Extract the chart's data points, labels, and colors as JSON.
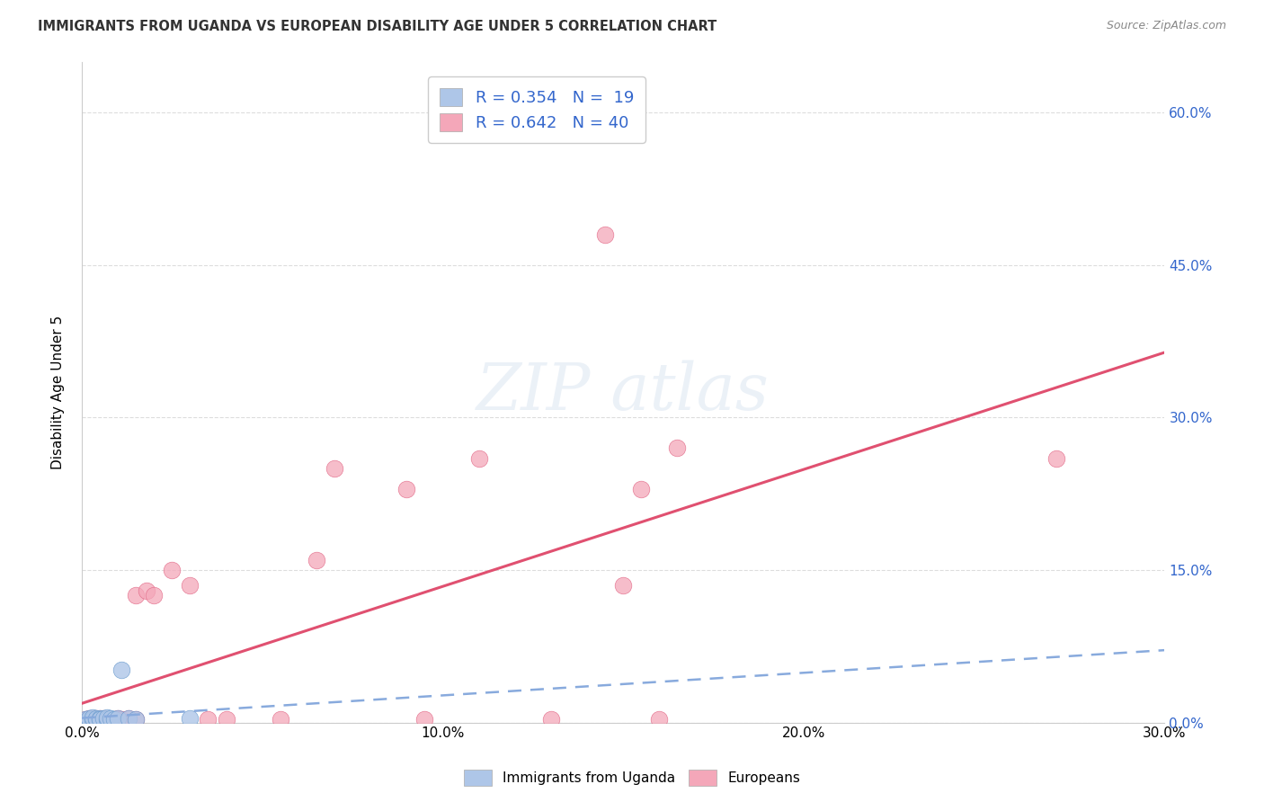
{
  "title": "IMMIGRANTS FROM UGANDA VS EUROPEAN DISABILITY AGE UNDER 5 CORRELATION CHART",
  "source": "Source: ZipAtlas.com",
  "ylabel": "Disability Age Under 5",
  "xlim": [
    0.0,
    0.3
  ],
  "ylim": [
    0.0,
    0.65
  ],
  "xtick_labels": [
    "0.0%",
    "",
    "10.0%",
    "",
    "20.0%",
    "",
    "30.0%"
  ],
  "xtick_vals": [
    0.0,
    0.05,
    0.1,
    0.15,
    0.2,
    0.25,
    0.3
  ],
  "ytick_labels_right": [
    "0.0%",
    "15.0%",
    "30.0%",
    "45.0%",
    "60.0%"
  ],
  "ytick_vals_right": [
    0.0,
    0.15,
    0.3,
    0.45,
    0.6
  ],
  "uganda_R": "0.354",
  "uganda_N": "19",
  "european_R": "0.642",
  "european_N": "40",
  "uganda_color": "#aec6e8",
  "uganda_edge": "#6699cc",
  "european_color": "#f4a7b9",
  "european_edge": "#e06080",
  "uganda_line_color": "#88aadd",
  "european_line_color": "#e05070",
  "legend_text_color": "#3366cc",
  "title_color": "#333333",
  "grid_color": "#dddddd",
  "uganda_x": [
    0.001,
    0.002,
    0.002,
    0.003,
    0.003,
    0.004,
    0.004,
    0.005,
    0.005,
    0.006,
    0.007,
    0.007,
    0.008,
    0.009,
    0.01,
    0.011,
    0.013,
    0.015,
    0.03
  ],
  "uganda_y": [
    0.003,
    0.002,
    0.004,
    0.003,
    0.005,
    0.003,
    0.004,
    0.004,
    0.003,
    0.004,
    0.003,
    0.005,
    0.004,
    0.003,
    0.004,
    0.052,
    0.004,
    0.003,
    0.004
  ],
  "european_x": [
    0.001,
    0.002,
    0.002,
    0.003,
    0.003,
    0.004,
    0.004,
    0.005,
    0.005,
    0.006,
    0.006,
    0.007,
    0.007,
    0.008,
    0.009,
    0.01,
    0.01,
    0.011,
    0.013,
    0.015,
    0.015,
    0.018,
    0.02,
    0.025,
    0.03,
    0.035,
    0.04,
    0.055,
    0.065,
    0.07,
    0.09,
    0.095,
    0.11,
    0.13,
    0.145,
    0.15,
    0.155,
    0.16,
    0.165,
    0.27
  ],
  "european_y": [
    0.003,
    0.002,
    0.004,
    0.003,
    0.003,
    0.003,
    0.004,
    0.003,
    0.004,
    0.003,
    0.004,
    0.003,
    0.003,
    0.003,
    0.003,
    0.003,
    0.004,
    0.003,
    0.004,
    0.003,
    0.125,
    0.13,
    0.125,
    0.15,
    0.135,
    0.003,
    0.003,
    0.003,
    0.16,
    0.25,
    0.23,
    0.003,
    0.26,
    0.003,
    0.48,
    0.135,
    0.23,
    0.003,
    0.27,
    0.26
  ]
}
